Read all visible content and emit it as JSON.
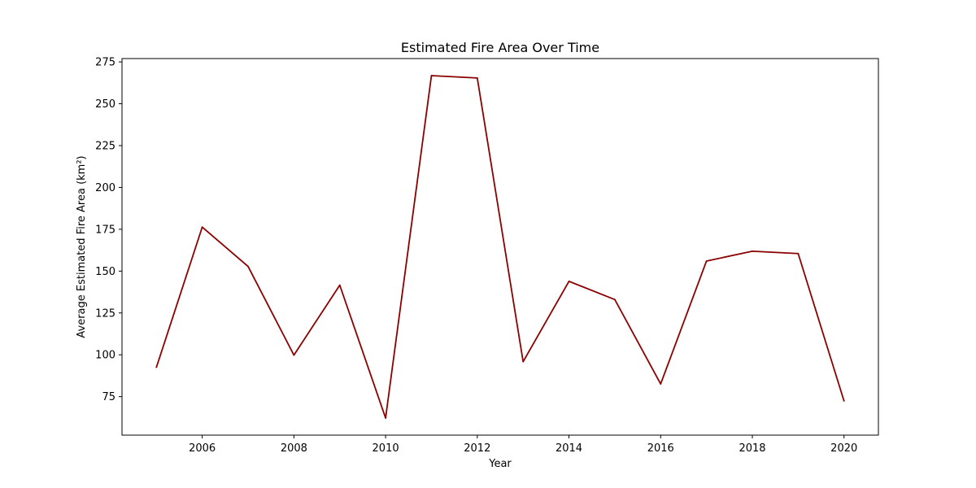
{
  "chart_data": {
    "type": "line",
    "title": "Estimated Fire Area Over Time",
    "xlabel": "Year",
    "ylabel": "Average Estimated Fire Area (km²)",
    "x": [
      2005,
      2006,
      2007,
      2008,
      2009,
      2010,
      2011,
      2012,
      2013,
      2014,
      2015,
      2016,
      2017,
      2018,
      2019,
      2020
    ],
    "series": [
      {
        "values": [
          92.5,
          176.3,
          152.8,
          99.8,
          141.6,
          62.2,
          266.8,
          265.4,
          95.9,
          143.9,
          133.0,
          82.6,
          156.0,
          161.9,
          160.5,
          72.4
        ],
        "color": "#8b0000"
      }
    ],
    "xticks": [
      2006,
      2008,
      2010,
      2012,
      2014,
      2016,
      2018,
      2020
    ],
    "yticks": [
      75,
      100,
      125,
      150,
      175,
      200,
      225,
      250,
      275
    ],
    "xlim": [
      2004.25,
      2020.75
    ],
    "ylim": [
      52.0,
      277.0
    ],
    "grid": false,
    "legend": "none"
  }
}
